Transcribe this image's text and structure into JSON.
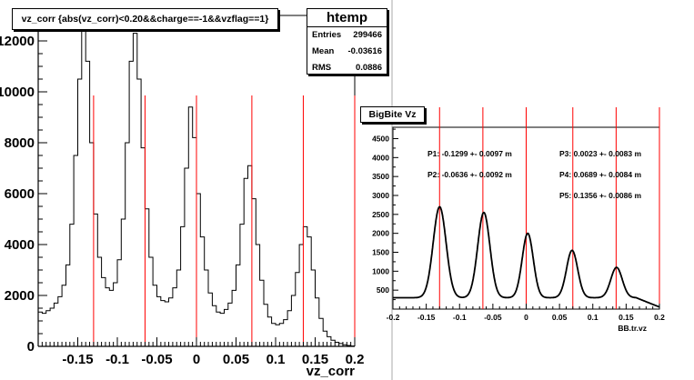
{
  "left_panel": {
    "title": "vz_corr {abs(vz_corr)<0.20&&charge==-1&&vzflag==1}",
    "stats": {
      "name": "htemp",
      "rows": [
        {
          "label": "Entries",
          "value": "299466"
        },
        {
          "label": "Mean",
          "value": "-0.03616"
        },
        {
          "label": "RMS",
          "value": "0.0886"
        }
      ]
    }
  },
  "right_panel": {
    "title": "BigBite Vz",
    "fit_labels": [
      "P1: -0.1299 +- 0.0097 m",
      "P2: -0.0636 +- 0.0092 m",
      "P3: 0.0023 +- 0.0083 m",
      "P4: 0.0689 +- 0.0084 m",
      "P5: 0.1356 +- 0.0086 m"
    ]
  },
  "colors": {
    "line": "#000000",
    "marker": "#ff0000",
    "frame": "#000000"
  },
  "chart_data": [
    {
      "type": "line",
      "title": "vz_corr {abs(vz_corr)<0.20&&charge==-1&&vzflag==1}",
      "xlabel": "vz_corr",
      "ylabel": "",
      "xlim": [
        -0.2,
        0.2
      ],
      "ylim": [
        0,
        13000
      ],
      "x_ticks": [
        -0.15,
        -0.1,
        -0.05,
        0,
        0.05,
        0.1,
        0.15,
        0.2
      ],
      "x_tick_labels": [
        "-0.15",
        "-0.1",
        "-0.05",
        "0",
        "0.05",
        "0.1",
        "0.15",
        "0.2"
      ],
      "y_ticks": [
        0,
        2000,
        4000,
        6000,
        8000,
        10000,
        12000
      ],
      "y_tick_labels": [
        "0",
        "2000",
        "4000",
        "6000",
        "8000",
        "10000",
        "12000"
      ],
      "vertical_markers": [
        -0.13,
        -0.065,
        0.0,
        0.07,
        0.135,
        0.2
      ],
      "histogram": {
        "x_start": -0.2,
        "bin_width": 0.005,
        "values": [
          1350,
          1300,
          1400,
          1500,
          1700,
          1950,
          2400,
          3200,
          4800,
          7500,
          10500,
          12500,
          11200,
          8000,
          5200,
          3500,
          2700,
          2300,
          2200,
          2500,
          3400,
          5000,
          8000,
          11200,
          12300,
          10500,
          7800,
          5400,
          3500,
          2400,
          1950,
          1800,
          1750,
          1900,
          2300,
          3000,
          4700,
          7000,
          9400,
          8200,
          6000,
          4300,
          3000,
          2100,
          1600,
          1350,
          1300,
          1450,
          1700,
          2200,
          3200,
          4800,
          6600,
          7100,
          5800,
          4000,
          2600,
          1650,
          1150,
          900,
          850,
          900,
          1050,
          1400,
          2000,
          2900,
          4000,
          4700,
          4300,
          3000,
          1900,
          1100,
          600,
          380,
          240,
          160,
          110,
          60,
          35,
          15
        ]
      },
      "grid": false
    },
    {
      "type": "scatter",
      "title": "BigBite Vz",
      "xlabel": "BB.tr.vz",
      "ylabel": "",
      "xlim": [
        -0.2,
        0.2
      ],
      "ylim": [
        0,
        4800
      ],
      "x_ticks": [
        -0.2,
        -0.15,
        -0.1,
        -0.05,
        0,
        0.05,
        0.1,
        0.15,
        0.2
      ],
      "x_tick_labels": [
        "-0.2",
        "-0.15",
        "-0.1",
        "-0.05",
        "0",
        "0.05",
        "0.1",
        "0.15",
        "0.2"
      ],
      "y_ticks": [
        500,
        1000,
        1500,
        2000,
        2500,
        3000,
        3500,
        4000,
        4500
      ],
      "y_tick_labels": [
        "500",
        "1000",
        "1500",
        "2000",
        "2500",
        "3000",
        "3500",
        "4000",
        "4500"
      ],
      "vertical_markers": [
        -0.13,
        -0.065,
        0.0,
        0.07,
        0.135,
        0.2
      ],
      "fit": {
        "baseline": 300,
        "peaks": [
          {
            "mean": -0.1299,
            "sigma": 0.0097,
            "height": 2400
          },
          {
            "mean": -0.0636,
            "sigma": 0.0092,
            "height": 2250
          },
          {
            "mean": 0.0023,
            "sigma": 0.0083,
            "height": 1700
          },
          {
            "mean": 0.0689,
            "sigma": 0.0084,
            "height": 1250
          },
          {
            "mean": 0.1356,
            "sigma": 0.0086,
            "height": 800
          }
        ]
      },
      "grid": false
    }
  ]
}
